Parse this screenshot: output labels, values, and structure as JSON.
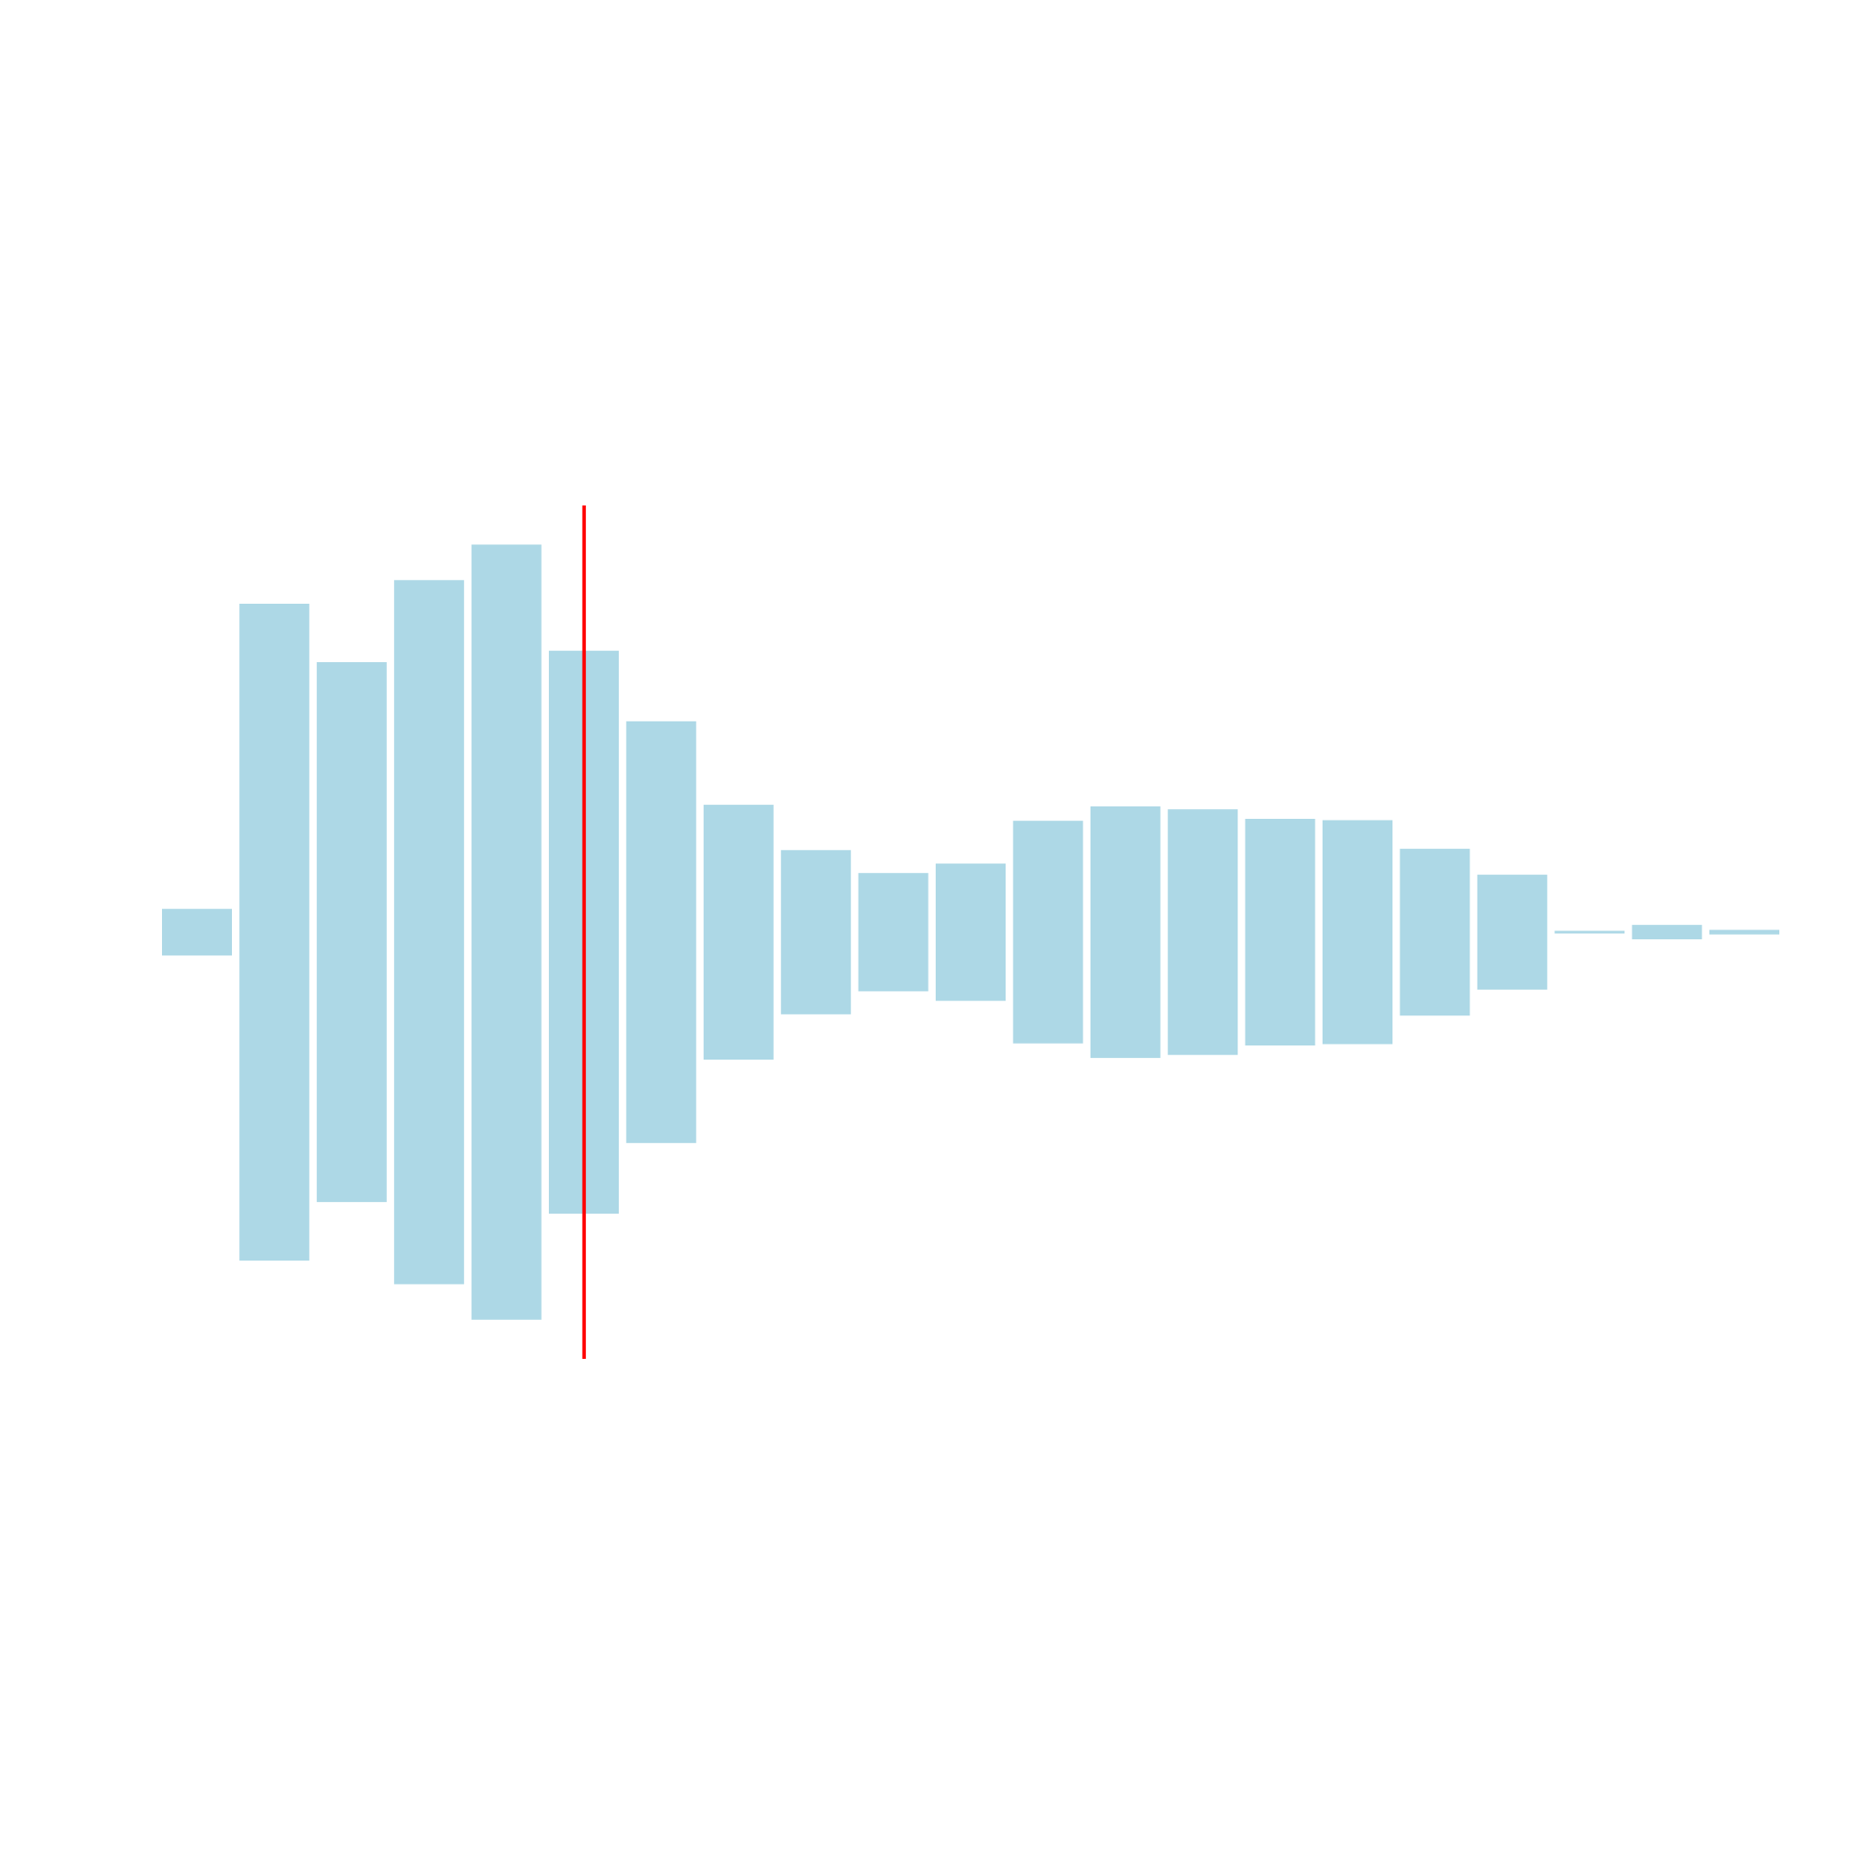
{
  "waveform": {
    "bar_color": "#add8e6",
    "playhead_color": "#ff0000",
    "amplitudes": [
      0.071,
      1.0,
      0.822,
      1.072,
      1.18,
      0.857,
      0.642,
      0.388,
      0.25,
      0.18,
      0.209,
      0.339,
      0.383,
      0.374,
      0.345,
      0.341,
      0.254,
      0.175,
      0.004,
      0.022,
      0.007
    ],
    "playhead_position": 0.261
  }
}
